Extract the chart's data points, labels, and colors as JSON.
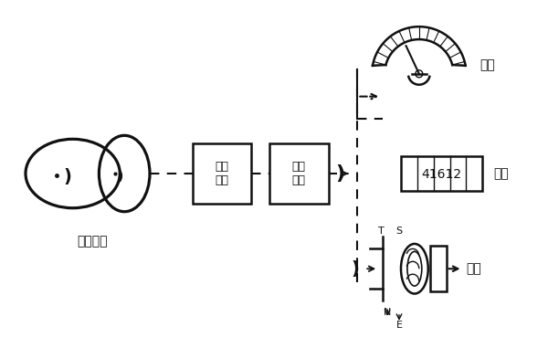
{
  "bg_color": "#ffffff",
  "line_color": "#111111",
  "fig_w": 6.0,
  "fig_h": 3.81,
  "gear_label": "椭圆齿轮",
  "box1_label": "减速\n装置",
  "box2_label": "速比\n调整",
  "label_indicator": "指示",
  "label_accumulator": "积算",
  "label_remote": "远传",
  "counter_text": "41612"
}
